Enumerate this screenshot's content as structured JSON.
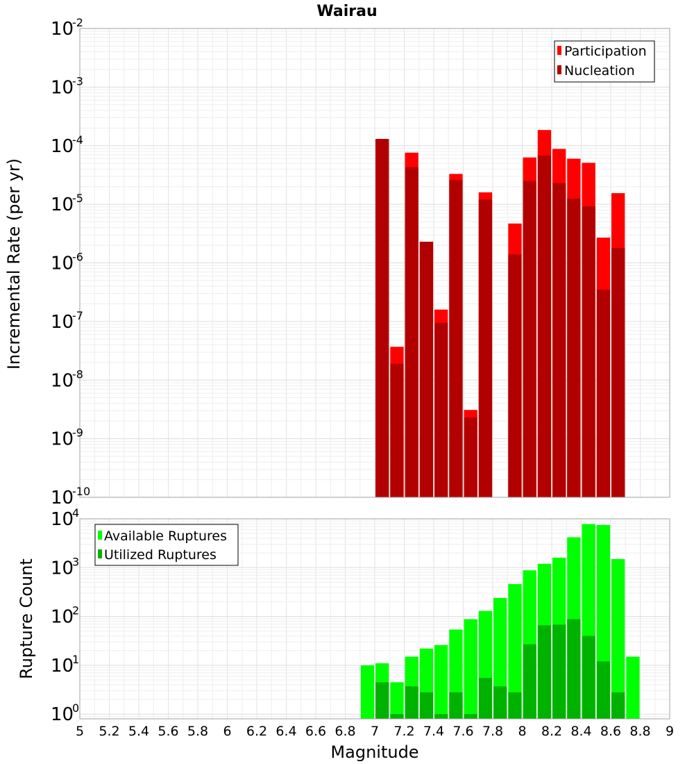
{
  "chart_data": [
    {
      "type": "bar",
      "title": "Wairau",
      "xlabel": "Magnitude",
      "ylabel": "Incremental Rate (per yr)",
      "y_scale": "log",
      "xlim": [
        5,
        9
      ],
      "ylim": [
        1e-10,
        0.01
      ],
      "x_tick_labels": [
        "5",
        "5.2",
        "5.4",
        "5.6",
        "5.8",
        "6",
        "6.2",
        "6.4",
        "6.6",
        "6.8",
        "7",
        "7.2",
        "7.4",
        "7.6",
        "7.8",
        "8",
        "8.2",
        "8.4",
        "8.6",
        "8.8",
        "9"
      ],
      "y_tick_labels": [
        {
          "base": "10",
          "exp": "-2"
        },
        {
          "base": "10",
          "exp": "-3"
        },
        {
          "base": "10",
          "exp": "-4"
        },
        {
          "base": "10",
          "exp": "-5"
        },
        {
          "base": "10",
          "exp": "-6"
        },
        {
          "base": "10",
          "exp": "-7"
        },
        {
          "base": "10",
          "exp": "-8"
        },
        {
          "base": "10",
          "exp": "-9"
        },
        {
          "base": "10",
          "exp": "-10"
        }
      ],
      "grid": true,
      "legend_position": "top-right",
      "x": [
        7.05,
        7.15,
        7.25,
        7.35,
        7.45,
        7.55,
        7.65,
        7.75,
        7.95,
        8.05,
        8.15,
        8.25,
        8.35,
        8.45,
        8.55,
        8.65
      ],
      "series": [
        {
          "name": "Participation",
          "color": "#ff0000",
          "values": [
            0.00013,
            3.7e-08,
            7.6e-05,
            2.3e-06,
            1.6e-07,
            3.3e-05,
            3.1e-09,
            1.6e-05,
            4.7e-06,
            6.3e-05,
            0.000185,
            8.8e-05,
            6e-05,
            5.1e-05,
            2.7e-06,
            1.55e-05
          ]
        },
        {
          "name": "Nucleation",
          "color": "#b20000",
          "values": [
            0.00013,
            1.9e-08,
            4.3e-05,
            2.3e-06,
            9.5e-08,
            2.6e-05,
            2.3e-09,
            1.2e-05,
            1.4e-06,
            2.5e-05,
            6.8e-05,
            2.3e-05,
            1.25e-05,
            9.2e-06,
            3.5e-07,
            1.8e-06
          ]
        }
      ]
    },
    {
      "type": "bar",
      "xlabel": "Magnitude",
      "ylabel": "Rupture Count",
      "y_scale": "log",
      "xlim": [
        5,
        9
      ],
      "ylim": [
        0.8,
        10000
      ],
      "y_tick_labels": [
        {
          "base": "10",
          "exp": "4"
        },
        {
          "base": "10",
          "exp": "3"
        },
        {
          "base": "10",
          "exp": "2"
        },
        {
          "base": "10",
          "exp": "1"
        },
        {
          "base": "10",
          "exp": "0"
        }
      ],
      "grid": true,
      "legend_position": "top-left",
      "x": [
        6.95,
        7.05,
        7.15,
        7.25,
        7.35,
        7.45,
        7.55,
        7.65,
        7.75,
        7.85,
        7.95,
        8.05,
        8.15,
        8.25,
        8.35,
        8.45,
        8.55,
        8.65,
        8.75
      ],
      "series": [
        {
          "name": "Available Ruptures",
          "color": "#00ff00",
          "values": [
            10,
            11,
            4.5,
            15,
            22,
            26,
            54,
            88,
            130,
            240,
            460,
            880,
            1200,
            1600,
            4200,
            7800,
            7500,
            1500,
            15
          ]
        },
        {
          "name": "Utilized Ruptures",
          "color": "#00b200",
          "values": [
            0,
            4.5,
            1,
            3.7,
            2.8,
            1,
            2.8,
            1,
            5.5,
            3.7,
            2.8,
            27,
            66,
            68,
            88,
            40,
            12,
            2.8,
            0
          ]
        }
      ]
    }
  ]
}
